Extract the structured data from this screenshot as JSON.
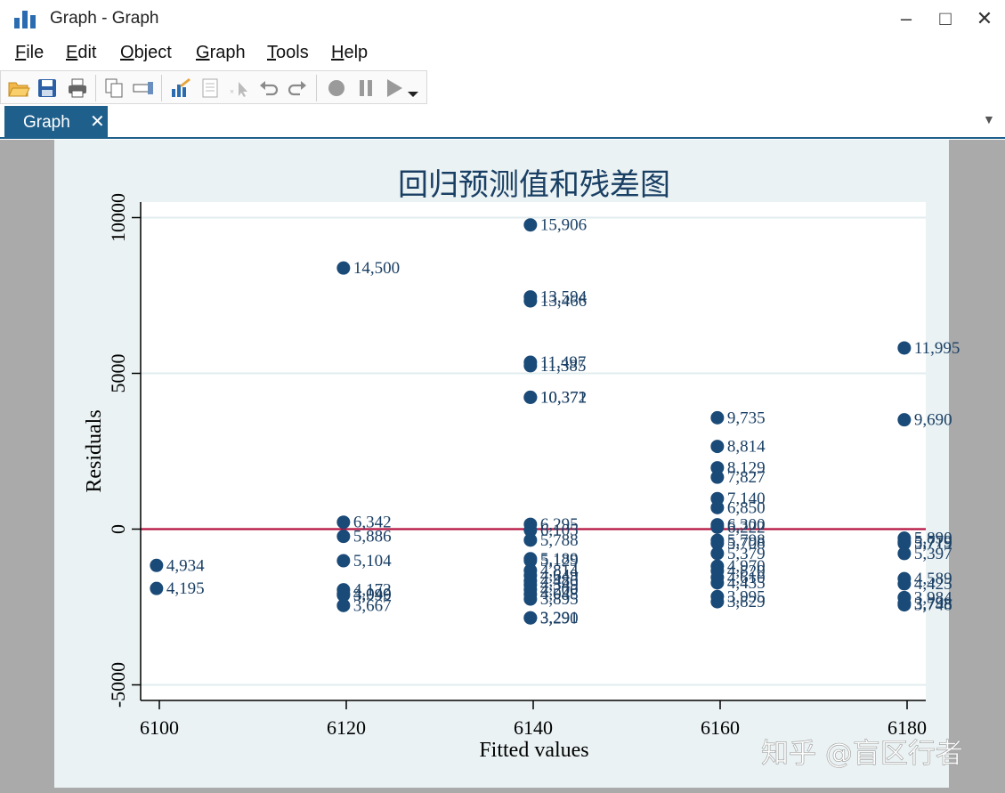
{
  "window": {
    "title": "Graph - Graph",
    "minimize": "–",
    "maximize": "□",
    "close": "✕"
  },
  "menu": [
    {
      "label": "File",
      "mnemonic": "F",
      "rest": "ile"
    },
    {
      "label": "Edit",
      "mnemonic": "E",
      "rest": "dit"
    },
    {
      "label": "Object",
      "mnemonic": "O",
      "rest": "bject"
    },
    {
      "label": "Graph",
      "mnemonic": "G",
      "rest": "raph"
    },
    {
      "label": "Tools",
      "mnemonic": "T",
      "rest": "ools"
    },
    {
      "label": "Help",
      "mnemonic": "H",
      "rest": "elp"
    }
  ],
  "toolbar": [
    {
      "name": "open-icon",
      "color": "#e8a33a"
    },
    {
      "name": "save-icon",
      "color": "#2b5fa6"
    },
    {
      "name": "print-icon",
      "color": "#555555"
    },
    {
      "name": "copy-icon",
      "color": "#666666"
    },
    {
      "name": "rename-icon",
      "color": "#555555"
    },
    {
      "name": "graph-editor-icon",
      "color": "#2b6cb0"
    },
    {
      "name": "data-editor-icon",
      "color": "#999999"
    },
    {
      "name": "pointer-icon",
      "color": "#aaaaaa"
    },
    {
      "name": "undo-icon",
      "color": "#888888"
    },
    {
      "name": "redo-icon",
      "color": "#888888"
    },
    {
      "name": "record-icon",
      "color": "#999999"
    },
    {
      "name": "pause-icon",
      "color": "#999999"
    },
    {
      "name": "play-icon",
      "color": "#999999"
    }
  ],
  "tab": {
    "label": "Graph",
    "close": "✕",
    "dropdown": "▼"
  },
  "chart_data": {
    "type": "scatter",
    "title": "回归预测值和残差图",
    "xlabel": "Fitted values",
    "ylabel": "Residuals",
    "xlim": [
      6098,
      6182
    ],
    "ylim": [
      -5500,
      10500
    ],
    "xticks": [
      6100,
      6120,
      6140,
      6160,
      6180
    ],
    "yticks": [
      -5000,
      0,
      5000,
      10000
    ],
    "grid": true,
    "reference_line": {
      "y": 0,
      "color": "#b5123f"
    },
    "marker_color": "#1a4a78",
    "label_color": "#1a3f64",
    "points": [
      {
        "x": 6099.7,
        "y": -1166,
        "label": "4,934"
      },
      {
        "x": 6099.7,
        "y": -1905,
        "label": "4,195"
      },
      {
        "x": 6119.7,
        "y": 8381,
        "label": "14,500"
      },
      {
        "x": 6119.7,
        "y": 223,
        "label": "6,342"
      },
      {
        "x": 6119.7,
        "y": -233,
        "label": "5,886"
      },
      {
        "x": 6119.7,
        "y": -1015,
        "label": "5,104"
      },
      {
        "x": 6119.7,
        "y": -1947,
        "label": "4,172"
      },
      {
        "x": 6119.7,
        "y": -2080,
        "label": "4,040"
      },
      {
        "x": 6119.7,
        "y": -2120,
        "label": "3,999"
      },
      {
        "x": 6119.7,
        "y": -2452,
        "label": "3,667"
      },
      {
        "x": 6139.7,
        "y": 9766,
        "label": "15,906"
      },
      {
        "x": 6139.7,
        "y": 7454,
        "label": "13,594"
      },
      {
        "x": 6139.7,
        "y": 7326,
        "label": "13,466"
      },
      {
        "x": 6139.7,
        "y": 5357,
        "label": "11,497"
      },
      {
        "x": 6139.7,
        "y": 5245,
        "label": "11,385"
      },
      {
        "x": 6139.7,
        "y": 4232,
        "label": "10,372"
      },
      {
        "x": 6139.7,
        "y": 4231,
        "label": "10,371"
      },
      {
        "x": 6139.7,
        "y": 155,
        "label": "6,295"
      },
      {
        "x": 6139.7,
        "y": -35,
        "label": "6,105"
      },
      {
        "x": 6139.7,
        "y": -352,
        "label": "5,788"
      },
      {
        "x": 6139.7,
        "y": -951,
        "label": "5,189"
      },
      {
        "x": 6139.7,
        "y": -1011,
        "label": "5,129"
      },
      {
        "x": 6139.7,
        "y": -1326,
        "label": "4,814"
      },
      {
        "x": 6139.7,
        "y": -1491,
        "label": "4,649"
      },
      {
        "x": 6139.7,
        "y": -1660,
        "label": "4,480"
      },
      {
        "x": 6139.7,
        "y": -1791,
        "label": "4,349"
      },
      {
        "x": 6139.7,
        "y": -1940,
        "label": "4,200"
      },
      {
        "x": 6139.7,
        "y": -2092,
        "label": "4,048"
      },
      {
        "x": 6139.7,
        "y": -2245,
        "label": "3,895"
      },
      {
        "x": 6139.7,
        "y": -2849,
        "label": "3,291"
      },
      {
        "x": 6139.7,
        "y": -2850,
        "label": "3,290"
      },
      {
        "x": 6159.7,
        "y": 3575,
        "label": "9,735"
      },
      {
        "x": 6159.7,
        "y": 2654,
        "label": "8,814"
      },
      {
        "x": 6159.7,
        "y": 1969,
        "label": "8,129"
      },
      {
        "x": 6159.7,
        "y": 1667,
        "label": "7,827"
      },
      {
        "x": 6159.7,
        "y": 980,
        "label": "7,140"
      },
      {
        "x": 6159.7,
        "y": 690,
        "label": "6,850"
      },
      {
        "x": 6159.7,
        "y": 140,
        "label": "6,300"
      },
      {
        "x": 6159.7,
        "y": 62,
        "label": "6,222"
      },
      {
        "x": 6159.7,
        "y": -362,
        "label": "5,798"
      },
      {
        "x": 6159.7,
        "y": -452,
        "label": "5,708"
      },
      {
        "x": 6159.7,
        "y": -781,
        "label": "5,379"
      },
      {
        "x": 6159.7,
        "y": -1190,
        "label": "4,970"
      },
      {
        "x": 6159.7,
        "y": -1340,
        "label": "4,820"
      },
      {
        "x": 6159.7,
        "y": -1550,
        "label": "4,610"
      },
      {
        "x": 6159.7,
        "y": -1725,
        "label": "4,435"
      },
      {
        "x": 6159.7,
        "y": -2165,
        "label": "3,995"
      },
      {
        "x": 6159.7,
        "y": -2331,
        "label": "3,829"
      },
      {
        "x": 6179.7,
        "y": 5815,
        "label": "11,995"
      },
      {
        "x": 6179.7,
        "y": 3510,
        "label": "9,690"
      },
      {
        "x": 6179.7,
        "y": -290,
        "label": "5,890"
      },
      {
        "x": 6179.7,
        "y": -400,
        "label": "5,779"
      },
      {
        "x": 6179.7,
        "y": -460,
        "label": "5,719"
      },
      {
        "x": 6179.7,
        "y": -783,
        "label": "5,397"
      },
      {
        "x": 6179.7,
        "y": -1591,
        "label": "4,589"
      },
      {
        "x": 6179.7,
        "y": -1755,
        "label": "4,425"
      },
      {
        "x": 6179.7,
        "y": -2196,
        "label": "3,984"
      },
      {
        "x": 6179.7,
        "y": -2380,
        "label": "3,798"
      },
      {
        "x": 6179.7,
        "y": -2432,
        "label": "3,748"
      }
    ]
  },
  "watermark": "知乎 @盲区行者"
}
